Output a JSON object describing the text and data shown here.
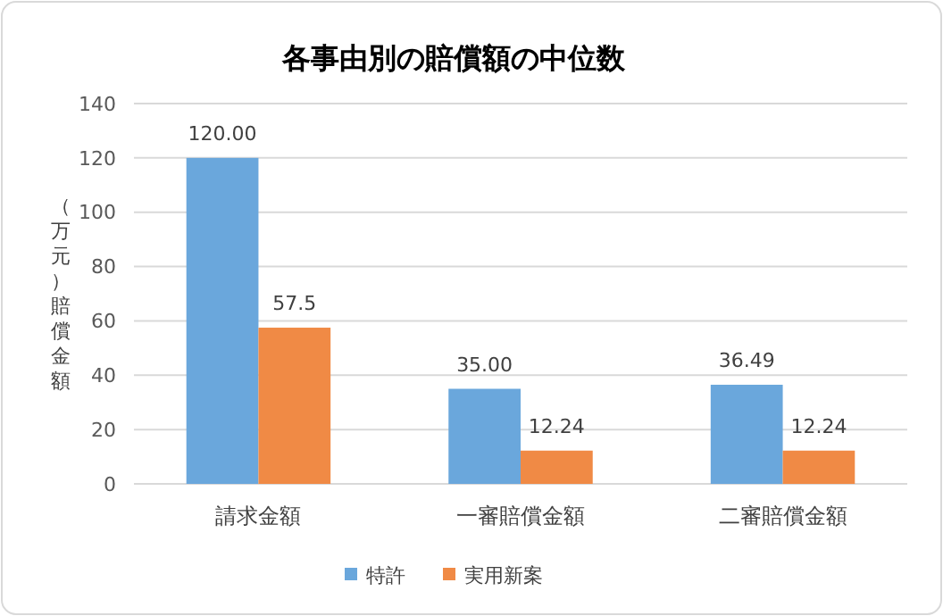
{
  "chart_data": {
    "type": "bar",
    "title": "各事由別の賠償額の中位数",
    "ylabel": "（万元）賠償金額",
    "categories": [
      "請求金額",
      "一審賠償金額",
      "二審賠償金額"
    ],
    "series": [
      {
        "name": "特許",
        "color": "#6aa7dc",
        "values": [
          120,
          35,
          36.49
        ],
        "value_labels": [
          "120.00",
          "35.00",
          "36.49"
        ]
      },
      {
        "name": "実用新案",
        "color": "#f08a45",
        "values": [
          57.5,
          12.24,
          12.24
        ],
        "value_labels": [
          "57.5",
          "12.24",
          "12.24"
        ]
      }
    ],
    "ylim": [
      0,
      140
    ],
    "yticks": [
      0,
      20,
      40,
      60,
      80,
      100,
      120,
      140
    ],
    "grid": "y",
    "legend": "bottom"
  }
}
